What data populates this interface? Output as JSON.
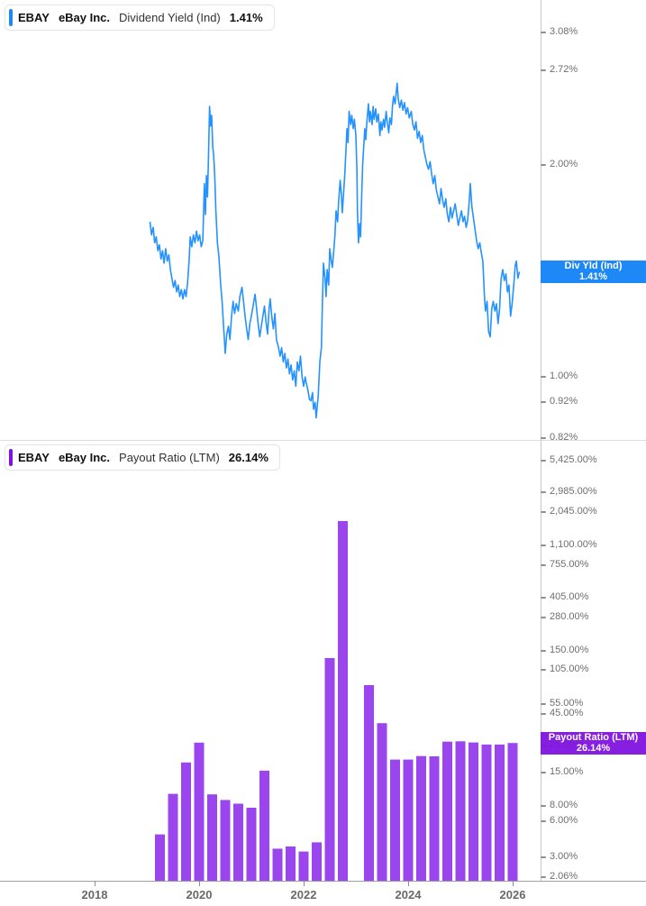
{
  "colors": {
    "line_blue": "#2492ff",
    "tag_blue": "#1e88f7",
    "bar_purple": "#9b45ef",
    "tag_purple": "#8012e0",
    "axis_label": "#6e6e6e",
    "year_label": "#696969",
    "axis_line": "#c8c8c8",
    "bottom_axis_line": "#a0a0a0",
    "divider": "#dedede",
    "tick_mark": "#8f8f8f"
  },
  "panels": [
    {
      "legend": {
        "ticker": "EBAY",
        "company": "eBay Inc.",
        "metric": "Dividend Yield (Ind)",
        "value": "1.41%"
      },
      "tag": {
        "line1": "Div Yld (Ind)",
        "line2": "1.41%"
      },
      "yticks": [
        {
          "v": 3.08,
          "label": "3.08%"
        },
        {
          "v": 2.72,
          "label": "2.72%"
        },
        {
          "v": 2.0,
          "label": "2.00%"
        },
        {
          "v": 1.0,
          "label": "1.00%"
        },
        {
          "v": 0.92,
          "label": "0.92%"
        },
        {
          "v": 0.82,
          "label": "0.82%"
        }
      ]
    },
    {
      "legend": {
        "ticker": "EBAY",
        "company": "eBay Inc.",
        "metric": "Payout Ratio (LTM)",
        "value": "26.14%"
      },
      "tag": {
        "line1": "Payout Ratio (LTM)",
        "line2": "26.14%"
      },
      "yticks": [
        {
          "v": 5425,
          "label": "5,425.00%"
        },
        {
          "v": 2985,
          "label": "2,985.00%"
        },
        {
          "v": 2045,
          "label": "2,045.00%"
        },
        {
          "v": 1100,
          "label": "1,100.00%"
        },
        {
          "v": 755,
          "label": "755.00%"
        },
        {
          "v": 405,
          "label": "405.00%"
        },
        {
          "v": 280,
          "label": "280.00%"
        },
        {
          "v": 150,
          "label": "150.00%"
        },
        {
          "v": 105,
          "label": "105.00%"
        },
        {
          "v": 55,
          "label": "55.00%"
        },
        {
          "v": 45,
          "label": "45.00%"
        },
        {
          "v": 25,
          "label": "25.00%"
        },
        {
          "v": 15,
          "label": "15.00%"
        },
        {
          "v": 8,
          "label": "8.00%"
        },
        {
          "v": 6,
          "label": "6.00%"
        },
        {
          "v": 3,
          "label": "3.00%"
        },
        {
          "v": 2.06,
          "label": "2.06%"
        }
      ]
    }
  ],
  "xaxis": {
    "ticks": [
      {
        "t": 2018,
        "label": "2018"
      },
      {
        "t": 2020,
        "label": "2020"
      },
      {
        "t": 2022,
        "label": "2022"
      },
      {
        "t": 2024,
        "label": "2024"
      },
      {
        "t": 2026,
        "label": "2026"
      }
    ]
  },
  "chart_data": [
    {
      "type": "line",
      "title": "EBAY eBay Inc. Dividend Yield (Ind)",
      "ticker": "EBAY",
      "series_name": "Dividend Yield (Ind)",
      "unit": "%",
      "current_value": 1.41,
      "yscale": "log",
      "ylim": [
        0.814,
        3.425
      ],
      "xlim": [
        2017.5,
        2026.6
      ],
      "grid": false,
      "legend_position": "top-left",
      "points": [
        [
          2019.06,
          1.66
        ],
        [
          2019.09,
          1.59
        ],
        [
          2019.12,
          1.63
        ],
        [
          2019.15,
          1.55
        ],
        [
          2019.18,
          1.58
        ],
        [
          2019.21,
          1.51
        ],
        [
          2019.24,
          1.54
        ],
        [
          2019.27,
          1.47
        ],
        [
          2019.3,
          1.51
        ],
        [
          2019.33,
          1.45
        ],
        [
          2019.36,
          1.52
        ],
        [
          2019.39,
          1.46
        ],
        [
          2019.42,
          1.49
        ],
        [
          2019.45,
          1.42
        ],
        [
          2019.48,
          1.38
        ],
        [
          2019.51,
          1.34
        ],
        [
          2019.54,
          1.37
        ],
        [
          2019.57,
          1.32
        ],
        [
          2019.6,
          1.35
        ],
        [
          2019.63,
          1.3
        ],
        [
          2019.66,
          1.33
        ],
        [
          2019.69,
          1.29
        ],
        [
          2019.72,
          1.33
        ],
        [
          2019.75,
          1.3
        ],
        [
          2019.78,
          1.36
        ],
        [
          2019.81,
          1.47
        ],
        [
          2019.83,
          1.58
        ],
        [
          2019.86,
          1.53
        ],
        [
          2019.89,
          1.59
        ],
        [
          2019.92,
          1.55
        ],
        [
          2019.95,
          1.61
        ],
        [
          2019.98,
          1.56
        ],
        [
          2020.01,
          1.59
        ],
        [
          2020.04,
          1.53
        ],
        [
          2020.07,
          1.56
        ],
        [
          2020.1,
          1.88
        ],
        [
          2020.12,
          1.7
        ],
        [
          2020.14,
          1.93
        ],
        [
          2020.16,
          1.8
        ],
        [
          2020.18,
          2.05
        ],
        [
          2020.2,
          2.42
        ],
        [
          2020.22,
          2.27
        ],
        [
          2020.24,
          2.35
        ],
        [
          2020.26,
          2.12
        ],
        [
          2020.28,
          2.06
        ],
        [
          2020.3,
          1.92
        ],
        [
          2020.32,
          1.72
        ],
        [
          2020.35,
          1.55
        ],
        [
          2020.38,
          1.48
        ],
        [
          2020.41,
          1.36
        ],
        [
          2020.44,
          1.28
        ],
        [
          2020.47,
          1.17
        ],
        [
          2020.5,
          1.08
        ],
        [
          2020.53,
          1.15
        ],
        [
          2020.56,
          1.18
        ],
        [
          2020.59,
          1.13
        ],
        [
          2020.62,
          1.22
        ],
        [
          2020.65,
          1.28
        ],
        [
          2020.68,
          1.23
        ],
        [
          2020.71,
          1.27
        ],
        [
          2020.75,
          1.24
        ],
        [
          2020.78,
          1.3
        ],
        [
          2020.82,
          1.34
        ],
        [
          2020.85,
          1.28
        ],
        [
          2020.88,
          1.22
        ],
        [
          2020.91,
          1.17
        ],
        [
          2020.94,
          1.13
        ],
        [
          2020.97,
          1.19
        ],
        [
          2021.0,
          1.22
        ],
        [
          2021.04,
          1.27
        ],
        [
          2021.07,
          1.31
        ],
        [
          2021.1,
          1.25
        ],
        [
          2021.13,
          1.19
        ],
        [
          2021.16,
          1.14
        ],
        [
          2021.19,
          1.18
        ],
        [
          2021.22,
          1.22
        ],
        [
          2021.25,
          1.26
        ],
        [
          2021.28,
          1.2
        ],
        [
          2021.31,
          1.15
        ],
        [
          2021.34,
          1.25
        ],
        [
          2021.36,
          1.29
        ],
        [
          2021.39,
          1.22
        ],
        [
          2021.42,
          1.17
        ],
        [
          2021.45,
          1.23
        ],
        [
          2021.48,
          1.13
        ],
        [
          2021.52,
          1.1
        ],
        [
          2021.55,
          1.07
        ],
        [
          2021.58,
          1.1
        ],
        [
          2021.61,
          1.05
        ],
        [
          2021.64,
          1.08
        ],
        [
          2021.67,
          1.03
        ],
        [
          2021.7,
          1.06
        ],
        [
          2021.73,
          1.01
        ],
        [
          2021.76,
          1.04
        ],
        [
          2021.79,
          0.99
        ],
        [
          2021.82,
          1.02
        ],
        [
          2021.85,
          0.97
        ],
        [
          2021.88,
          1.05
        ],
        [
          2021.91,
          1.02
        ],
        [
          2021.94,
          1.07
        ],
        [
          2021.97,
          1.0
        ],
        [
          2022.0,
          0.97
        ],
        [
          2022.03,
          1.0
        ],
        [
          2022.05,
          0.98
        ],
        [
          2022.08,
          0.96
        ],
        [
          2022.11,
          0.93
        ],
        [
          2022.14,
          0.925
        ],
        [
          2022.17,
          0.95
        ],
        [
          2022.19,
          0.9
        ],
        [
          2022.22,
          0.92
        ],
        [
          2022.24,
          0.875
        ],
        [
          2022.28,
          0.94
        ],
        [
          2022.31,
          1.05
        ],
        [
          2022.34,
          1.1
        ],
        [
          2022.36,
          1.28
        ],
        [
          2022.38,
          1.45
        ],
        [
          2022.41,
          1.38
        ],
        [
          2022.43,
          1.3
        ],
        [
          2022.45,
          1.42
        ],
        [
          2022.48,
          1.35
        ],
        [
          2022.5,
          1.52
        ],
        [
          2022.53,
          1.46
        ],
        [
          2022.55,
          1.43
        ],
        [
          2022.58,
          1.52
        ],
        [
          2022.6,
          1.59
        ],
        [
          2022.62,
          1.72
        ],
        [
          2022.65,
          1.66
        ],
        [
          2022.67,
          1.78
        ],
        [
          2022.7,
          1.9
        ],
        [
          2022.72,
          1.82
        ],
        [
          2022.74,
          1.71
        ],
        [
          2022.76,
          1.8
        ],
        [
          2022.79,
          1.95
        ],
        [
          2022.81,
          2.1
        ],
        [
          2022.83,
          2.25
        ],
        [
          2022.85,
          2.15
        ],
        [
          2022.87,
          2.38
        ],
        [
          2022.9,
          2.28
        ],
        [
          2022.92,
          2.35
        ],
        [
          2022.95,
          2.25
        ],
        [
          2022.97,
          2.32
        ],
        [
          2023.0,
          2.2
        ],
        [
          2023.02,
          1.95
        ],
        [
          2023.03,
          1.72
        ],
        [
          2023.05,
          1.55
        ],
        [
          2023.07,
          1.65
        ],
        [
          2023.09,
          1.58
        ],
        [
          2023.11,
          1.8
        ],
        [
          2023.13,
          2.0
        ],
        [
          2023.15,
          2.12
        ],
        [
          2023.17,
          2.25
        ],
        [
          2023.19,
          2.17
        ],
        [
          2023.21,
          2.3
        ],
        [
          2023.24,
          2.44
        ],
        [
          2023.26,
          2.3
        ],
        [
          2023.28,
          2.38
        ],
        [
          2023.31,
          2.28
        ],
        [
          2023.33,
          2.42
        ],
        [
          2023.35,
          2.32
        ],
        [
          2023.38,
          2.4
        ],
        [
          2023.4,
          2.3
        ],
        [
          2023.43,
          2.36
        ],
        [
          2023.46,
          2.2
        ],
        [
          2023.48,
          2.3
        ],
        [
          2023.5,
          2.24
        ],
        [
          2023.53,
          2.32
        ],
        [
          2023.55,
          2.26
        ],
        [
          2023.58,
          2.38
        ],
        [
          2023.6,
          2.3
        ],
        [
          2023.63,
          2.22
        ],
        [
          2023.65,
          2.33
        ],
        [
          2023.68,
          2.28
        ],
        [
          2023.7,
          2.42
        ],
        [
          2023.72,
          2.5
        ],
        [
          2023.75,
          2.44
        ],
        [
          2023.79,
          2.61
        ],
        [
          2023.81,
          2.48
        ],
        [
          2023.84,
          2.41
        ],
        [
          2023.87,
          2.47
        ],
        [
          2023.9,
          2.39
        ],
        [
          2023.93,
          2.45
        ],
        [
          2023.96,
          2.36
        ],
        [
          2023.99,
          2.41
        ],
        [
          2024.02,
          2.33
        ],
        [
          2024.06,
          2.38
        ],
        [
          2024.09,
          2.28
        ],
        [
          2024.12,
          2.24
        ],
        [
          2024.15,
          2.3
        ],
        [
          2024.18,
          2.18
        ],
        [
          2024.21,
          2.23
        ],
        [
          2024.24,
          2.15
        ],
        [
          2024.27,
          2.2
        ],
        [
          2024.3,
          2.1
        ],
        [
          2024.33,
          2.05
        ],
        [
          2024.36,
          2.0
        ],
        [
          2024.39,
          1.97
        ],
        [
          2024.42,
          2.02
        ],
        [
          2024.45,
          1.94
        ],
        [
          2024.48,
          1.88
        ],
        [
          2024.51,
          1.93
        ],
        [
          2024.54,
          1.84
        ],
        [
          2024.57,
          1.8
        ],
        [
          2024.6,
          1.76
        ],
        [
          2024.63,
          1.85
        ],
        [
          2024.66,
          1.78
        ],
        [
          2024.69,
          1.74
        ],
        [
          2024.72,
          1.79
        ],
        [
          2024.75,
          1.7
        ],
        [
          2024.78,
          1.66
        ],
        [
          2024.81,
          1.74
        ],
        [
          2024.84,
          1.68
        ],
        [
          2024.87,
          1.72
        ],
        [
          2024.9,
          1.76
        ],
        [
          2024.93,
          1.7
        ],
        [
          2024.96,
          1.64
        ],
        [
          2024.99,
          1.68
        ],
        [
          2025.02,
          1.72
        ],
        [
          2025.05,
          1.66
        ],
        [
          2025.08,
          1.69
        ],
        [
          2025.11,
          1.63
        ],
        [
          2025.14,
          1.67
        ],
        [
          2025.17,
          1.78
        ],
        [
          2025.19,
          1.88
        ],
        [
          2025.22,
          1.74
        ],
        [
          2025.25,
          1.68
        ],
        [
          2025.28,
          1.62
        ],
        [
          2025.31,
          1.56
        ],
        [
          2025.34,
          1.52
        ],
        [
          2025.37,
          1.55
        ],
        [
          2025.4,
          1.5
        ],
        [
          2025.43,
          1.46
        ],
        [
          2025.46,
          1.3
        ],
        [
          2025.48,
          1.24
        ],
        [
          2025.51,
          1.28
        ],
        [
          2025.54,
          1.16
        ],
        [
          2025.57,
          1.14
        ],
        [
          2025.6,
          1.25
        ],
        [
          2025.63,
          1.28
        ],
        [
          2025.66,
          1.24
        ],
        [
          2025.69,
          1.27
        ],
        [
          2025.72,
          1.19
        ],
        [
          2025.75,
          1.25
        ],
        [
          2025.78,
          1.38
        ],
        [
          2025.81,
          1.42
        ],
        [
          2025.84,
          1.37
        ],
        [
          2025.87,
          1.4
        ],
        [
          2025.9,
          1.32
        ],
        [
          2025.93,
          1.35
        ],
        [
          2025.96,
          1.22
        ],
        [
          2025.99,
          1.27
        ],
        [
          2026.02,
          1.35
        ],
        [
          2026.05,
          1.44
        ],
        [
          2026.07,
          1.46
        ],
        [
          2026.1,
          1.38
        ],
        [
          2026.13,
          1.41
        ]
      ]
    },
    {
      "type": "bar",
      "title": "EBAY eBay Inc. Payout Ratio (LTM)",
      "ticker": "EBAY",
      "series_name": "Payout Ratio (LTM)",
      "unit": "%",
      "current_value": 26.14,
      "yscale": "log",
      "ylim": [
        1.92,
        8017
      ],
      "xlim": [
        2017.5,
        2026.6
      ],
      "grid": false,
      "bar_start_quarter_end": 2019.25,
      "categories": [
        "Q1 2019",
        "Q2 2019",
        "Q3 2019",
        "Q4 2019",
        "Q1 2020",
        "Q2 2020",
        "Q3 2020",
        "Q4 2020",
        "Q1 2021",
        "Q2 2021",
        "Q3 2021",
        "Q4 2021",
        "Q1 2022",
        "Q2 2022",
        "Q3 2022",
        "Q4 2022",
        "Q1 2023",
        "Q2 2023",
        "Q3 2023",
        "Q4 2023",
        "Q1 2024",
        "Q2 2024",
        "Q3 2024",
        "Q4 2024",
        "Q1 2025",
        "Q2 2025",
        "Q3 2025",
        "Q4 2025"
      ],
      "values": [
        4.65,
        10.0,
        18.1,
        26.3,
        9.9,
        8.9,
        8.3,
        7.7,
        15.5,
        3.55,
        3.7,
        3.36,
        4.0,
        130,
        1730,
        null,
        78,
        38,
        19.1,
        19.1,
        20.4,
        20.3,
        26.8,
        27.0,
        26.4,
        25.4,
        25.4,
        26.14
      ]
    }
  ]
}
